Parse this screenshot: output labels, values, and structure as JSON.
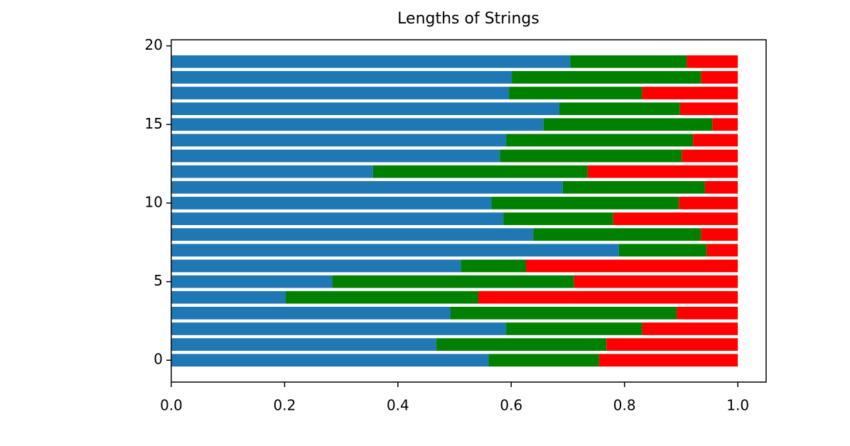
{
  "chart_data": {
    "type": "bar",
    "orientation": "horizontal",
    "stacked": true,
    "title": "Lengths of Strings",
    "y": [
      0,
      1,
      2,
      3,
      4,
      5,
      6,
      7,
      8,
      9,
      10,
      11,
      12,
      13,
      14,
      15,
      16,
      17,
      18,
      19
    ],
    "bar_height": 0.8,
    "series": [
      {
        "color": "#1f77b4",
        "values": [
          0.56,
          0.468,
          0.591,
          0.493,
          0.202,
          0.284,
          0.511,
          0.79,
          0.639,
          0.586,
          0.565,
          0.691,
          0.356,
          0.58,
          0.591,
          0.657,
          0.685,
          0.596,
          0.601,
          0.704
        ]
      },
      {
        "color": "#008000",
        "values": [
          0.195,
          0.3,
          0.24,
          0.399,
          0.34,
          0.427,
          0.115,
          0.155,
          0.296,
          0.194,
          0.331,
          0.251,
          0.379,
          0.321,
          0.33,
          0.298,
          0.213,
          0.235,
          0.334,
          0.206
        ]
      },
      {
        "color": "#ff0000",
        "values": [
          0.245,
          0.232,
          0.169,
          0.108,
          0.458,
          0.289,
          0.374,
          0.055,
          0.065,
          0.22,
          0.104,
          0.058,
          0.265,
          0.099,
          0.079,
          0.045,
          0.102,
          0.169,
          0.065,
          0.09
        ]
      }
    ],
    "xlim": [
      0,
      1.05
    ],
    "xticks": [
      {
        "value": 0,
        "label": "0.0"
      },
      0.2,
      0.4,
      0.6,
      0.8,
      {
        "value": 1,
        "label": "1.0"
      }
    ],
    "ylim": [
      -1.39,
      20.39
    ],
    "yticks": [
      0,
      5,
      10,
      15,
      20
    ],
    "grid": false
  }
}
